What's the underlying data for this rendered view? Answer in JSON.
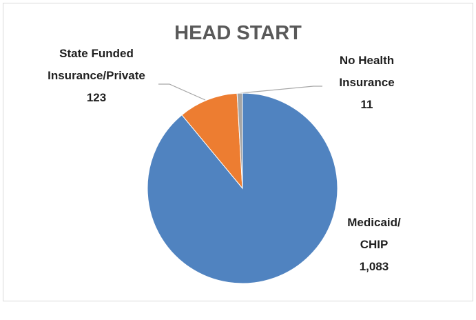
{
  "chart_data": {
    "type": "pie",
    "title": "HEAD START",
    "categories": [
      "Medicaid/CHIP",
      "State Funded Insurance/Private",
      "No Health Insurance"
    ],
    "values": [
      1083,
      123,
      11
    ],
    "value_labels": [
      "1,083",
      "123",
      "11"
    ],
    "colors": [
      "#5083c0",
      "#ed7d31",
      "#a5a5a5"
    ]
  }
}
